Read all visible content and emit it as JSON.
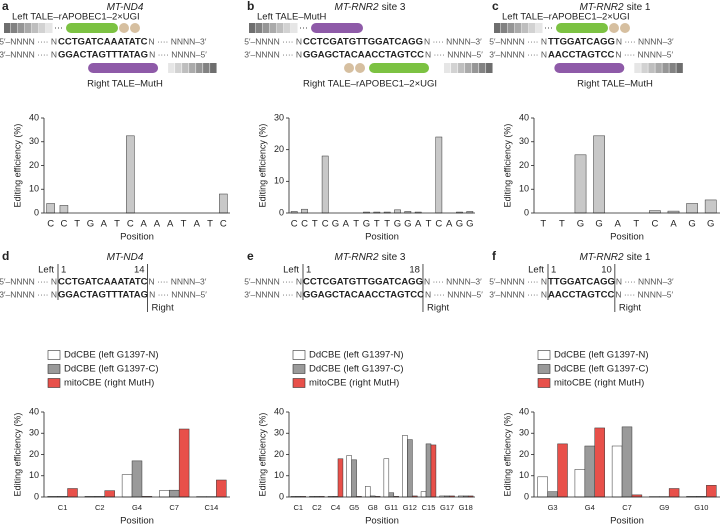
{
  "panels": [
    {
      "letter": "a",
      "gene": "MT-ND4",
      "top_label": "Left TALE–rAPOBEC1–2×UGI",
      "bottom_label": "Right TALE–MutH",
      "strand_top": [
        "5′–NNNN ···· N",
        "CCTGATCAAATATC",
        "N ···· NNNN–3′"
      ],
      "strand_bottom": [
        "3′–NNNN ···· N",
        "GGACTAGTTTATAG",
        "N ···· NNNN–5′"
      ]
    },
    {
      "letter": "b",
      "gene": "MT-RNR2",
      "site": "site 3",
      "top_label": "Left TALE–MutH",
      "bottom_label": "Right TALE–rAPOBEC1–2×UGI",
      "strand_top": [
        "5′–NNNN ···· N",
        "CCTCGATGTTGGATCAGG",
        "N ···· NNNN–3′"
      ],
      "strand_bottom": [
        "3′–NNNN ···· N",
        "GGAGCTACAACCTAGTCC",
        "N ···· NNNN–5′"
      ]
    },
    {
      "letter": "c",
      "gene": "MT-RNR2",
      "site": "site 1",
      "top_label": "Left TALE–rAPOBEC1–2×UGI",
      "bottom_label": "Right TALE–MutH",
      "strand_top": [
        "5′–NNNN ···· N",
        "TTGGATCAGG",
        "N ···· NNNN–3′"
      ],
      "strand_bottom": [
        "3′–NNNN ···· N",
        "AACCTAGTCC",
        "N ···· NNNN–5′"
      ]
    },
    {
      "letter": "d",
      "gene": "MT-ND4",
      "left_label": "Left",
      "start": 1,
      "end": 14,
      "right_label": "Right",
      "strand_top": [
        "5′–NNNN ···· N",
        "CCTGATCAAATATC",
        "N ···· NNNN–3′"
      ],
      "strand_bottom": [
        "3′–NNNN ···· N",
        "GGACTAGTTTATAG",
        "N ···· NNNN–5′"
      ]
    },
    {
      "letter": "e",
      "gene": "MT-RNR2",
      "site": "site 3",
      "left_label": "Left",
      "start": 1,
      "end": 18,
      "right_label": "Right",
      "strand_top": [
        "5′–NNNN ···· N",
        "CCTCGATGTTGGATCAGG",
        "N ···· NNNN–3′"
      ],
      "strand_bottom": [
        "3′–NNNN ···· N",
        "GGAGCTACAACCTAGTCC",
        "N ···· NNNN–5′"
      ]
    },
    {
      "letter": "f",
      "gene": "MT-RNR2",
      "site": "site 1",
      "left_label": "Left",
      "start": 1,
      "end": 10,
      "right_label": "Right",
      "strand_top": [
        "5′–NNNN ···· N",
        "TTGGATCAGG",
        "N ···· NNNN–3′"
      ],
      "strand_bottom": [
        "3′–NNNN ···· N",
        "AACCTAGTCC",
        "N ···· NNNN–5′"
      ]
    }
  ],
  "chart_data": [
    {
      "type": "bar",
      "ylabel": "Editing efficiency (%)",
      "xlabel": "Position",
      "color": "#c8c8c8",
      "categories": [
        "C",
        "C",
        "T",
        "G",
        "A",
        "T",
        "C",
        "A",
        "A",
        "A",
        "T",
        "A",
        "T",
        "C"
      ],
      "values": [
        4,
        3.2,
        0,
        0,
        0,
        0,
        32.5,
        0,
        0,
        0,
        0,
        0,
        0,
        8
      ],
      "ylim": [
        0,
        40
      ],
      "yticks": [
        0,
        10,
        20,
        30,
        40
      ]
    },
    {
      "type": "bar",
      "ylabel": "Editing efficiency (%)",
      "xlabel": "Position",
      "color": "#c8c8c8",
      "categories": [
        "C",
        "C",
        "T",
        "C",
        "G",
        "A",
        "T",
        "G",
        "T",
        "T",
        "G",
        "G",
        "A",
        "T",
        "C",
        "A",
        "G",
        "G"
      ],
      "values": [
        0.5,
        1.2,
        0,
        18,
        0,
        0,
        0,
        0.3,
        0.3,
        0.3,
        1,
        0.5,
        0.3,
        0,
        24,
        0,
        0.3,
        0.5
      ],
      "ylim": [
        0,
        30
      ],
      "yticks": [
        0,
        10,
        20,
        30
      ]
    },
    {
      "type": "bar",
      "ylabel": "Editing efficiency (%)",
      "xlabel": "Position",
      "color": "#c8c8c8",
      "categories": [
        "T",
        "T",
        "G",
        "G",
        "A",
        "T",
        "C",
        "A",
        "G",
        "G"
      ],
      "values": [
        0,
        0,
        24.5,
        32.5,
        0,
        0,
        1,
        0.8,
        4,
        5.5
      ],
      "ylim": [
        0,
        40
      ],
      "yticks": [
        0,
        10,
        20,
        30,
        40
      ]
    },
    {
      "type": "bar",
      "ylabel": "Editing efficiency (%)",
      "xlabel": "Position",
      "categories": [
        "C1",
        "C2",
        "G4",
        "C7",
        "C14"
      ],
      "ylim": [
        0,
        40
      ],
      "yticks": [
        0,
        10,
        20,
        30,
        40
      ],
      "series": [
        {
          "name": "DdCBE (left G1397-N)",
          "color": "#ffffff",
          "values": [
            0.3,
            0.3,
            10.5,
            3,
            0.2
          ]
        },
        {
          "name": "DdCBE (left G1397-C)",
          "color": "#9a9a9a",
          "values": [
            0.3,
            0.3,
            17,
            3.2,
            0.2
          ]
        },
        {
          "name": "mitoCBE (right MutH)",
          "color": "#e8504a",
          "values": [
            4,
            3,
            0.3,
            32,
            8
          ]
        }
      ]
    },
    {
      "type": "bar",
      "ylabel": "Editing efficiency (%)",
      "xlabel": "Position",
      "categories": [
        "C1",
        "C2",
        "C4",
        "G5",
        "G8",
        "G11",
        "G12",
        "C15",
        "G17",
        "G18"
      ],
      "ylim": [
        0,
        40
      ],
      "yticks": [
        0,
        10,
        20,
        30,
        40
      ],
      "series": [
        {
          "name": "DdCBE (left G1397-N)",
          "color": "#ffffff",
          "values": [
            0.3,
            0.3,
            0.3,
            19.5,
            5,
            18,
            29,
            2.5,
            0.5,
            0.5
          ]
        },
        {
          "name": "DdCBE (left G1397-C)",
          "color": "#9a9a9a",
          "values": [
            0.3,
            0.3,
            0.3,
            17.5,
            0.5,
            2,
            27,
            25,
            0.5,
            0.5
          ]
        },
        {
          "name": "mitoCBE (right MutH)",
          "color": "#e8504a",
          "values": [
            0.3,
            0.3,
            18,
            0.3,
            0.3,
            0.3,
            0.5,
            24.5,
            0.5,
            0.5
          ]
        }
      ]
    },
    {
      "type": "bar",
      "ylabel": "Editing efficiency (%)",
      "xlabel": "Position",
      "categories": [
        "G3",
        "G4",
        "C7",
        "G9",
        "G10"
      ],
      "ylim": [
        0,
        40
      ],
      "yticks": [
        0,
        10,
        20,
        30,
        40
      ],
      "series": [
        {
          "name": "DdCBE (left G1397-N)",
          "color": "#ffffff",
          "values": [
            9.5,
            13,
            24,
            0.2,
            0.3
          ]
        },
        {
          "name": "DdCBE (left G1397-C)",
          "color": "#9a9a9a",
          "values": [
            2.5,
            24,
            33,
            0.2,
            0.3
          ]
        },
        {
          "name": "mitoCBE (right MutH)",
          "color": "#e8504a",
          "values": [
            25,
            32.5,
            1,
            4,
            5.5
          ]
        }
      ]
    }
  ]
}
